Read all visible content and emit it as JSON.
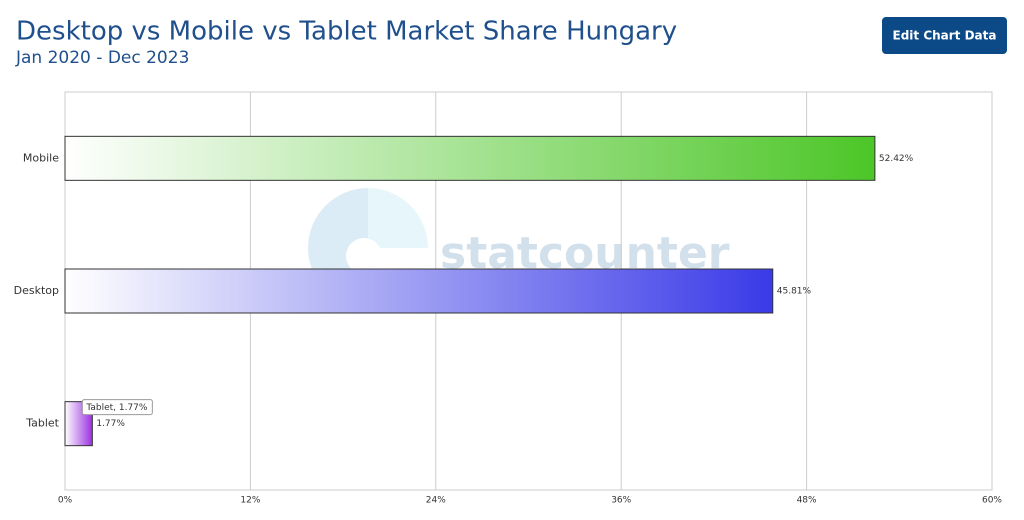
{
  "chart_data": {
    "type": "hbar",
    "title": "Desktop vs Mobile vs Tablet Market Share Hungary",
    "subtitle": "Jan 2020 - Dec 2023",
    "button": "Edit Chart Data",
    "watermark": "statcounter",
    "tooltip": "Tablet, 1.77%",
    "categories": [
      "Mobile",
      "Desktop",
      "Tablet"
    ],
    "values": [
      52.42,
      45.81,
      1.77
    ],
    "value_labels": [
      "52.42%",
      "45.81%",
      "1.77%"
    ],
    "colors": [
      "#4cc627",
      "#3a3ae8",
      "#9b30e0"
    ],
    "xlim": [
      0,
      60
    ],
    "xticks": [
      {
        "value": 0,
        "label": "0%"
      },
      {
        "value": 12,
        "label": "12%"
      },
      {
        "value": 24,
        "label": "24%"
      },
      {
        "value": 36,
        "label": "36%"
      },
      {
        "value": 48,
        "label": "48%"
      },
      {
        "value": 60,
        "label": "60%"
      }
    ],
    "grid": true
  }
}
